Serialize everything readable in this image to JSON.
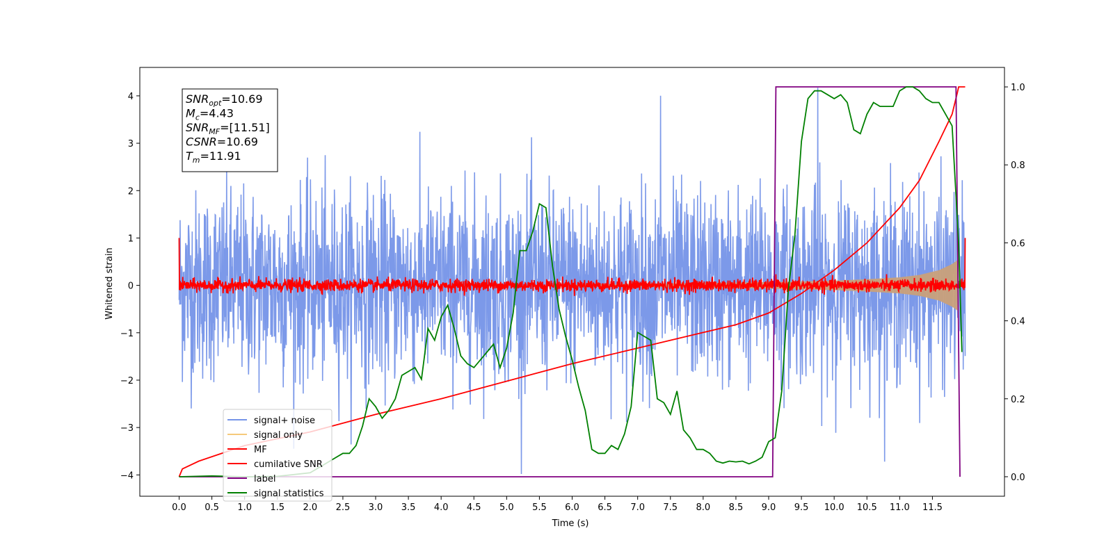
{
  "chart_data": {
    "type": "line",
    "xlabel": "Time (s)",
    "ylabel": "Whitened strain",
    "xlim": [
      -0.6,
      12.6
    ],
    "ylim": [
      -4.45,
      4.6
    ],
    "y2lim": [
      -0.05,
      1.05
    ],
    "xticks": [
      "0.0",
      "0.5",
      "1.0",
      "1.5",
      "2.0",
      "2.5",
      "3.0",
      "3.5",
      "4.0",
      "4.5",
      "5.0",
      "5.5",
      "6.0",
      "6.5",
      "7.0",
      "7.5",
      "8.0",
      "8.5",
      "9.0",
      "9.5",
      "10.0",
      "10.5",
      "11.0",
      "11.5"
    ],
    "yticks": [
      -4,
      -3,
      -2,
      -1,
      0,
      1,
      2,
      3,
      4
    ],
    "y2ticks": [
      "0.0",
      "0.2",
      "0.4",
      "0.6",
      "0.8",
      "1.0"
    ],
    "info_box": [
      {
        "sym": "SNR",
        "sub": "opt",
        "rest": "=10.69"
      },
      {
        "sym": "M",
        "sub": "c",
        "rest": "=4.43"
      },
      {
        "sym": "SNR",
        "sub": "MF",
        "rest": "=[11.51]"
      },
      {
        "sym": "CSNR",
        "sub": "",
        "rest": "=10.69"
      },
      {
        "sym": "T",
        "sub": "m",
        "rest": "=11.91"
      }
    ],
    "legend_position": "lower-left",
    "legend": [
      {
        "label": "signal+ noise",
        "color": "#7594e8"
      },
      {
        "label": "signal only",
        "color": "#f5c97a"
      },
      {
        "label": "MF",
        "color": "#ff0000"
      },
      {
        "label": "cumilative SNR",
        "color": "#ff0000"
      },
      {
        "label": "label",
        "color": "#800080"
      },
      {
        "label": "signal statistics",
        "color": "#008000"
      }
    ],
    "series": [
      {
        "name": "signal+ noise",
        "axis": "left",
        "color": "#7594e8",
        "kind": "noise-band",
        "duration": 12.0,
        "envelope_abs": 1.8,
        "peak_abs": 4.17
      },
      {
        "name": "signal only",
        "axis": "left",
        "color": "#c9a07a",
        "kind": "chirp-envelope",
        "x": [
          6.0,
          8.0,
          9.0,
          10.0,
          10.5,
          11.0,
          11.3,
          11.6,
          11.8,
          11.9
        ],
        "y": [
          0.02,
          0.05,
          0.07,
          0.1,
          0.13,
          0.17,
          0.22,
          0.32,
          0.45,
          0.55
        ]
      },
      {
        "name": "MF",
        "axis": "left",
        "color": "#ff0000",
        "kind": "noise-band",
        "duration": 12.0,
        "envelope_abs": 0.12,
        "start_value": 1.0,
        "end_value": 1.0
      },
      {
        "name": "cumilative SNR",
        "axis": "right",
        "color": "#ff0000",
        "kind": "line",
        "x": [
          0.0,
          0.05,
          0.3,
          1.0,
          2.0,
          3.0,
          4.0,
          5.0,
          6.0,
          7.0,
          8.0,
          8.5,
          9.0,
          9.5,
          10.0,
          10.5,
          11.0,
          11.3,
          11.6,
          11.8,
          11.88,
          11.9,
          12.0
        ],
        "y": [
          0.0,
          0.02,
          0.04,
          0.08,
          0.115,
          0.16,
          0.2,
          0.245,
          0.29,
          0.33,
          0.37,
          0.39,
          0.42,
          0.47,
          0.53,
          0.6,
          0.69,
          0.76,
          0.86,
          0.93,
          0.985,
          1.0,
          1.0
        ]
      },
      {
        "name": "label",
        "axis": "right",
        "color": "#800080",
        "kind": "line",
        "x": [
          0.0,
          9.06,
          9.11,
          11.86,
          11.92
        ],
        "y": [
          0.0,
          0.0,
          1.0,
          1.0,
          0.0
        ]
      },
      {
        "name": "signal statistics",
        "axis": "right",
        "color": "#008000",
        "kind": "line",
        "x": [
          0.0,
          0.5,
          1.0,
          1.5,
          2.0,
          2.2,
          2.4,
          2.5,
          2.6,
          2.7,
          2.8,
          2.9,
          3.0,
          3.1,
          3.2,
          3.3,
          3.4,
          3.5,
          3.6,
          3.7,
          3.8,
          3.9,
          4.0,
          4.1,
          4.2,
          4.3,
          4.4,
          4.5,
          4.6,
          4.7,
          4.8,
          4.9,
          5.0,
          5.1,
          5.2,
          5.3,
          5.4,
          5.5,
          5.6,
          5.7,
          5.8,
          5.9,
          6.0,
          6.1,
          6.2,
          6.3,
          6.4,
          6.5,
          6.6,
          6.7,
          6.8,
          6.9,
          7.0,
          7.1,
          7.2,
          7.3,
          7.4,
          7.5,
          7.6,
          7.7,
          7.8,
          7.9,
          8.0,
          8.1,
          8.2,
          8.3,
          8.4,
          8.5,
          8.6,
          8.7,
          8.8,
          8.9,
          9.0,
          9.1,
          9.2,
          9.3,
          9.4,
          9.5,
          9.6,
          9.7,
          9.8,
          9.9,
          10.0,
          10.1,
          10.2,
          10.3,
          10.4,
          10.5,
          10.6,
          10.7,
          10.8,
          10.9,
          11.0,
          11.1,
          11.2,
          11.3,
          11.4,
          11.5,
          11.6,
          11.7,
          11.8,
          11.9,
          11.95
        ],
        "y": [
          0.0,
          0.002,
          0.0,
          0.001,
          0.01,
          0.03,
          0.05,
          0.06,
          0.06,
          0.08,
          0.13,
          0.2,
          0.18,
          0.15,
          0.17,
          0.2,
          0.26,
          0.27,
          0.28,
          0.25,
          0.38,
          0.35,
          0.41,
          0.44,
          0.38,
          0.31,
          0.29,
          0.28,
          0.3,
          0.32,
          0.34,
          0.28,
          0.33,
          0.42,
          0.58,
          0.58,
          0.63,
          0.7,
          0.69,
          0.54,
          0.43,
          0.36,
          0.3,
          0.23,
          0.17,
          0.07,
          0.06,
          0.06,
          0.08,
          0.07,
          0.11,
          0.18,
          0.37,
          0.36,
          0.35,
          0.2,
          0.19,
          0.16,
          0.22,
          0.12,
          0.1,
          0.07,
          0.07,
          0.06,
          0.04,
          0.035,
          0.04,
          0.038,
          0.04,
          0.033,
          0.04,
          0.05,
          0.09,
          0.1,
          0.22,
          0.48,
          0.62,
          0.86,
          0.97,
          0.99,
          0.99,
          0.98,
          0.97,
          0.98,
          0.96,
          0.89,
          0.88,
          0.93,
          0.96,
          0.95,
          0.95,
          0.95,
          0.99,
          1.0,
          1.0,
          0.99,
          0.97,
          0.96,
          0.96,
          0.93,
          0.9,
          0.6,
          0.32
        ]
      }
    ]
  }
}
